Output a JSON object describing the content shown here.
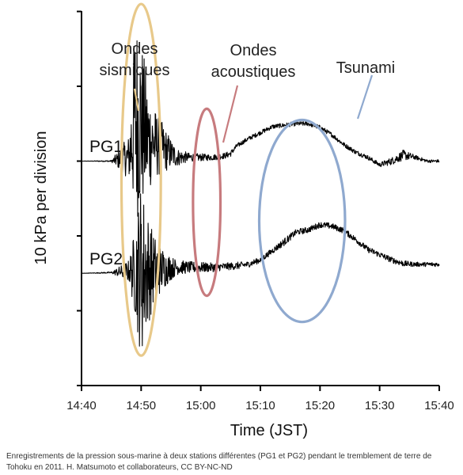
{
  "chart_data": {
    "type": "line",
    "title": "",
    "xlabel": "Time (JST)",
    "ylabel": "10 kPa per division",
    "x_ticks": [
      "14:40",
      "14:50",
      "15:00",
      "15:10",
      "15:20",
      "15:30",
      "15:40"
    ],
    "xlim": [
      "14:40",
      "15:40"
    ],
    "y_divisions": 5,
    "grid": false,
    "legend": "none",
    "series": [
      {
        "name": "PG1",
        "color": "#000000",
        "baseline_division": 3,
        "x": [
          "14:40",
          "14:45",
          "14:48",
          "14:49",
          "14:50",
          "14:51",
          "14:52",
          "14:53",
          "14:54",
          "14:55",
          "14:56",
          "14:58",
          "15:00",
          "15:02",
          "15:04",
          "15:05",
          "15:06",
          "15:08",
          "15:10",
          "15:12",
          "15:14",
          "15:16",
          "15:18",
          "15:20",
          "15:22",
          "15:24",
          "15:26",
          "15:28",
          "15:30",
          "15:32",
          "15:34",
          "15:36",
          "15:38",
          "15:40"
        ],
        "values": [
          0.0,
          0.0,
          0.05,
          0.6,
          0.5,
          0.3,
          0.25,
          0.2,
          0.15,
          0.1,
          0.05,
          0.05,
          0.05,
          0.05,
          0.07,
          0.1,
          0.2,
          0.3,
          0.38,
          0.46,
          0.48,
          0.5,
          0.5,
          0.45,
          0.35,
          0.22,
          0.12,
          0.05,
          -0.05,
          0.0,
          0.08,
          0.05,
          0.0,
          0.0
        ],
        "noise_amplitude": [
          0.0,
          0.01,
          0.3,
          1.4,
          1.2,
          0.8,
          0.5,
          0.4,
          0.3,
          0.2,
          0.12,
          0.06,
          0.05,
          0.04,
          0.04,
          0.04,
          0.03,
          0.03,
          0.03,
          0.03,
          0.03,
          0.03,
          0.03,
          0.03,
          0.03,
          0.03,
          0.03,
          0.03,
          0.03,
          0.05,
          0.07,
          0.03,
          0.02,
          0.02
        ]
      },
      {
        "name": "PG2",
        "color": "#000000",
        "baseline_division": 1.5,
        "x": [
          "14:40",
          "14:45",
          "14:48",
          "14:49",
          "14:50",
          "14:51",
          "14:52",
          "14:53",
          "14:54",
          "14:55",
          "14:56",
          "14:58",
          "15:00",
          "15:02",
          "15:04",
          "15:06",
          "15:08",
          "15:10",
          "15:12",
          "15:14",
          "15:16",
          "15:18",
          "15:20",
          "15:22",
          "15:24",
          "15:26",
          "15:28",
          "15:30",
          "15:32",
          "15:34",
          "15:36",
          "15:38",
          "15:40"
        ],
        "values": [
          0.0,
          0.01,
          0.03,
          0.02,
          0.05,
          0.05,
          0.05,
          0.05,
          0.06,
          0.07,
          0.08,
          0.08,
          0.08,
          0.08,
          0.09,
          0.1,
          0.12,
          0.18,
          0.3,
          0.42,
          0.55,
          0.58,
          0.65,
          0.63,
          0.57,
          0.45,
          0.32,
          0.25,
          0.18,
          0.13,
          0.12,
          0.12,
          0.12
        ],
        "noise_amplitude": [
          0.0,
          0.01,
          0.15,
          0.6,
          1.2,
          0.8,
          0.5,
          0.35,
          0.25,
          0.16,
          0.1,
          0.08,
          0.07,
          0.06,
          0.05,
          0.05,
          0.04,
          0.04,
          0.04,
          0.05,
          0.04,
          0.04,
          0.04,
          0.04,
          0.04,
          0.04,
          0.04,
          0.04,
          0.04,
          0.04,
          0.03,
          0.03,
          0.03
        ]
      }
    ],
    "annotations": [
      {
        "label_lines": [
          "Ondes",
          "sismiques"
        ],
        "color": "#e8c98a",
        "center_time": "14:50",
        "center_division": 2.75,
        "time_radius_min": 3.3,
        "division_radius": 2.35
      },
      {
        "label_lines": [
          "Ondes",
          "acoustiques"
        ],
        "color": "#c77b7e",
        "center_time": "15:01",
        "center_division": 2.45,
        "time_radius_min": 2.3,
        "division_radius": 1.25
      },
      {
        "label_lines": [
          "Tsunami"
        ],
        "color": "#8fa9cf",
        "center_time": "15:17",
        "center_division": 2.2,
        "time_radius_min": 7.2,
        "division_radius": 1.35
      }
    ]
  },
  "caption": "Enregistrements de la pression sous-marine à deux stations différentes (PG1 et PG2) pendant le tremblement de terre de Tohoku en 2011. H. Matsumoto et collaborateurs, CC BY-NC-ND"
}
